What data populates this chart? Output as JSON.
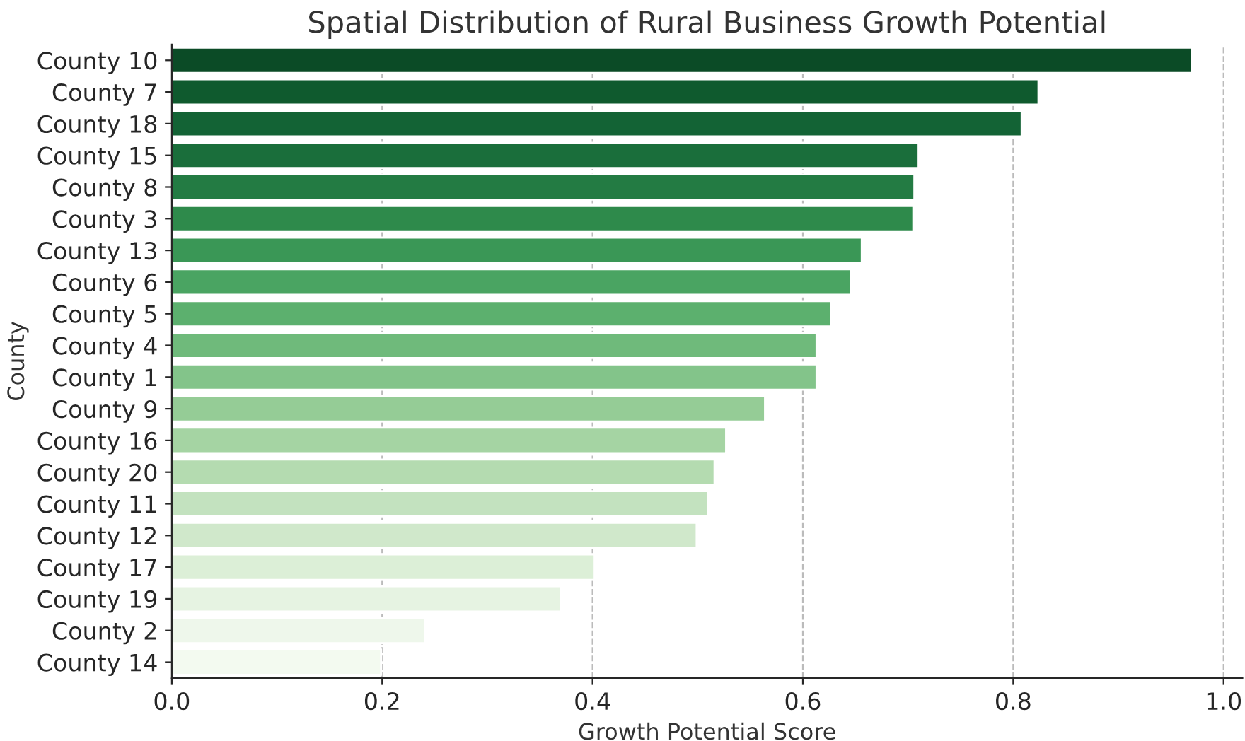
{
  "chart_data": {
    "type": "bar",
    "orientation": "horizontal",
    "title": "Spatial Distribution of Rural Business Growth Potential",
    "xlabel": "Growth Potential Score",
    "ylabel": "County",
    "categories": [
      "County 10",
      "County 7",
      "County 18",
      "County 15",
      "County 8",
      "County 3",
      "County 13",
      "County 6",
      "County 5",
      "County 4",
      "County 1",
      "County 9",
      "County 16",
      "County 20",
      "County 11",
      "County 12",
      "County 17",
      "County 19",
      "County 2",
      "County 14"
    ],
    "values": [
      0.97,
      0.824,
      0.808,
      0.71,
      0.706,
      0.705,
      0.656,
      0.646,
      0.627,
      0.613,
      0.613,
      0.564,
      0.527,
      0.516,
      0.51,
      0.499,
      0.402,
      0.37,
      0.241,
      0.199
    ],
    "colors": [
      "#0b4b26",
      "#0f5a2e",
      "#136335",
      "#1a6e3b",
      "#237b43",
      "#2e8a4b",
      "#3a9756",
      "#4aa462",
      "#5cb06e",
      "#6fba7b",
      "#83c48a",
      "#95cc96",
      "#a5d4a3",
      "#b4dbb0",
      "#c3e2bf",
      "#d0e8cb",
      "#dcefd7",
      "#e6f3e2",
      "#eef7eb",
      "#f3faf0"
    ],
    "xlim": [
      0,
      1.018
    ],
    "xticks": [
      {
        "value": 0,
        "label": "0.0"
      },
      0.2,
      0.4,
      0.6,
      0.8,
      {
        "value": 1,
        "label": "1.0"
      }
    ],
    "grid": "x"
  }
}
